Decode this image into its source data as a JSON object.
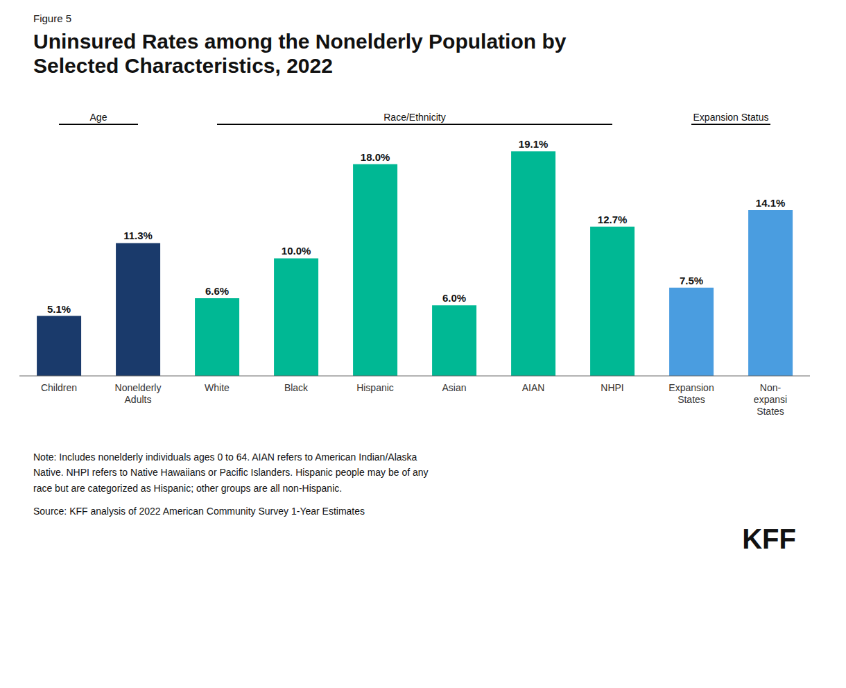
{
  "chart_data": {
    "type": "bar",
    "title": "Uninsured Rates among the Nonelderly Population by\nSelected Characteristics, 2022",
    "figure_label": "Figure 5",
    "categories": [
      "Children",
      "Nonelderly\nAdults",
      "White",
      "Black",
      "Hispanic",
      "Asian",
      "AIAN",
      "NHPI",
      "Expansion\nStates",
      "Non-\nexpansi\nStates"
    ],
    "values": [
      5.1,
      11.3,
      6.6,
      10.0,
      18.0,
      6.0,
      19.1,
      12.7,
      7.5,
      14.1
    ],
    "value_labels": [
      "5.1%",
      "11.3%",
      "6.6%",
      "10.0%",
      "18.0%",
      "6.0%",
      "19.1%",
      "12.7%",
      "7.5%",
      "14.1%"
    ],
    "colors": [
      "#1a3a6b",
      "#1a3a6b",
      "#00b894",
      "#00b894",
      "#00b894",
      "#00b894",
      "#00b894",
      "#00b894",
      "#4a9de0",
      "#4a9de0"
    ],
    "ylim": [
      0,
      23
    ],
    "data_labels": true,
    "tick_labels": "x",
    "grid": false,
    "groups": [
      {
        "label": "Age",
        "categories": [
          "Children",
          "Nonelderly\nAdults"
        ]
      },
      {
        "label": "Race/Ethnicity",
        "categories": [
          "White",
          "Black",
          "Hispanic",
          "Asian",
          "AIAN",
          "NHPI"
        ]
      },
      {
        "label": "Expansion Status",
        "categories": [
          "Expansion\nStates",
          "Non-\nexpansi\nStates"
        ]
      }
    ],
    "note": "Note: Includes nonelderly individuals ages 0 to 64. AIAN refers to American Indian/Alaska\nNative. NHPI refers to Native Hawaiians or Pacific Islanders. Hispanic people may be of any\nrace but are categorized as Hispanic; other groups are all non-Hispanic.",
    "source": "Source: KFF analysis of 2022 American Community Survey 1-Year Estimates",
    "logo": "KFF"
  }
}
